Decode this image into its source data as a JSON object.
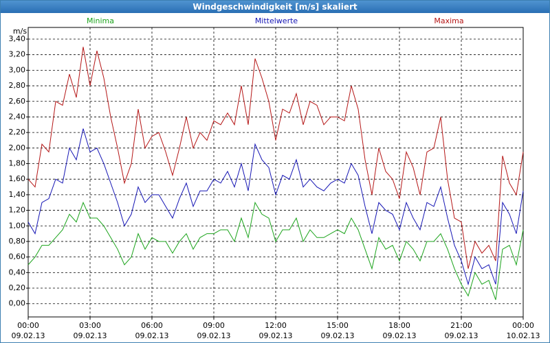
{
  "chart_data": {
    "type": "line",
    "title": "Windgeschwindigkeit [m/s] skaliert",
    "y_label": "m/s",
    "x": [
      0,
      20,
      40,
      60,
      80,
      100,
      120,
      140,
      160,
      180,
      200,
      220,
      240,
      260,
      280,
      300,
      320,
      340,
      360,
      380,
      400,
      420,
      440,
      460,
      480,
      500,
      520,
      540,
      560,
      580,
      600,
      620,
      640,
      660,
      680,
      700,
      720,
      740,
      760,
      780,
      800,
      820,
      840,
      860,
      880,
      900,
      920,
      940,
      960,
      980,
      1000,
      1020,
      1040,
      1060,
      1080,
      1100,
      1120,
      1140,
      1160,
      1180,
      1200,
      1220,
      1240,
      1260,
      1280,
      1300,
      1320,
      1340,
      1360,
      1380,
      1400,
      1420,
      1440
    ],
    "series": [
      {
        "name": "Minima",
        "color": "#1aa31a",
        "values": [
          0.5,
          0.6,
          0.75,
          0.75,
          0.85,
          0.95,
          1.15,
          1.05,
          1.3,
          1.1,
          1.1,
          1.0,
          0.85,
          0.7,
          0.5,
          0.6,
          0.9,
          0.7,
          0.85,
          0.8,
          0.8,
          0.65,
          0.8,
          0.9,
          0.7,
          0.85,
          0.9,
          0.9,
          0.95,
          0.95,
          0.8,
          1.1,
          0.85,
          1.3,
          1.15,
          1.1,
          0.8,
          0.95,
          0.95,
          1.1,
          0.8,
          0.95,
          0.85,
          0.85,
          0.9,
          0.95,
          0.9,
          1.1,
          0.95,
          0.7,
          0.45,
          0.85,
          0.7,
          0.75,
          0.55,
          0.8,
          0.7,
          0.55,
          0.8,
          0.8,
          0.9,
          0.7,
          0.45,
          0.25,
          0.1,
          0.4,
          0.25,
          0.3,
          0.05,
          0.7,
          0.75,
          0.5,
          0.95
        ]
      },
      {
        "name": "Mittelwerte",
        "color": "#1414b4",
        "values": [
          1.05,
          0.9,
          1.3,
          1.35,
          1.6,
          1.55,
          2.0,
          1.85,
          2.25,
          1.95,
          2.0,
          1.8,
          1.55,
          1.3,
          1.0,
          1.15,
          1.5,
          1.3,
          1.4,
          1.4,
          1.25,
          1.1,
          1.35,
          1.55,
          1.25,
          1.45,
          1.45,
          1.6,
          1.55,
          1.7,
          1.5,
          1.8,
          1.45,
          2.05,
          1.85,
          1.75,
          1.4,
          1.65,
          1.6,
          1.85,
          1.5,
          1.6,
          1.5,
          1.45,
          1.55,
          1.6,
          1.55,
          1.8,
          1.65,
          1.25,
          0.9,
          1.3,
          1.2,
          1.15,
          0.95,
          1.3,
          1.1,
          0.95,
          1.3,
          1.25,
          1.5,
          1.1,
          0.75,
          0.55,
          0.25,
          0.6,
          0.45,
          0.5,
          0.25,
          1.3,
          1.15,
          0.9,
          1.45
        ]
      },
      {
        "name": "Maxima",
        "color": "#b41414",
        "values": [
          1.6,
          1.5,
          2.05,
          1.95,
          2.6,
          2.55,
          2.95,
          2.65,
          3.3,
          2.8,
          3.25,
          2.9,
          2.4,
          2.0,
          1.55,
          1.8,
          2.5,
          2.0,
          2.15,
          2.2,
          1.95,
          1.65,
          2.0,
          2.4,
          2.0,
          2.2,
          2.1,
          2.35,
          2.3,
          2.45,
          2.3,
          2.8,
          2.3,
          3.15,
          2.9,
          2.6,
          2.1,
          2.5,
          2.45,
          2.7,
          2.3,
          2.6,
          2.55,
          2.3,
          2.4,
          2.4,
          2.35,
          2.8,
          2.5,
          1.85,
          1.4,
          2.0,
          1.7,
          1.6,
          1.35,
          1.95,
          1.75,
          1.4,
          1.95,
          2.0,
          2.4,
          1.6,
          1.1,
          1.05,
          0.45,
          0.8,
          0.65,
          0.75,
          0.55,
          1.9,
          1.55,
          1.4,
          1.95
        ]
      }
    ],
    "xlim": [
      0,
      1440
    ],
    "xticks": [
      {
        "value": 0,
        "label": "00:00",
        "sublabel": "09.02.13"
      },
      {
        "value": 180,
        "label": "03:00",
        "sublabel": "09.02.13"
      },
      {
        "value": 360,
        "label": "06:00",
        "sublabel": "09.02.13"
      },
      {
        "value": 540,
        "label": "09:00",
        "sublabel": "09.02.13"
      },
      {
        "value": 720,
        "label": "12:00",
        "sublabel": "09.02.13"
      },
      {
        "value": 900,
        "label": "15:00",
        "sublabel": "09.02.13"
      },
      {
        "value": 1080,
        "label": "18:00",
        "sublabel": "09.02.13"
      },
      {
        "value": 1260,
        "label": "21:00",
        "sublabel": "09.02.13"
      },
      {
        "value": 1440,
        "label": "00:00",
        "sublabel": "10.02.13"
      }
    ],
    "ylim": [
      -0.17,
      3.55
    ],
    "yticks": [
      {
        "value": 0,
        "label": "0,00"
      },
      {
        "value": 0.2,
        "label": "0,20"
      },
      {
        "value": 0.4,
        "label": "0,40"
      },
      {
        "value": 0.6,
        "label": "0,60"
      },
      {
        "value": 0.8,
        "label": "0,80"
      },
      {
        "value": 1.0,
        "label": "1,00"
      },
      {
        "value": 1.2,
        "label": "1,20"
      },
      {
        "value": 1.4,
        "label": "1,40"
      },
      {
        "value": 1.6,
        "label": "1,60"
      },
      {
        "value": 1.8,
        "label": "1,80"
      },
      {
        "value": 2.0,
        "label": "2,00"
      },
      {
        "value": 2.2,
        "label": "2,20"
      },
      {
        "value": 2.4,
        "label": "2,40"
      },
      {
        "value": 2.6,
        "label": "2,60"
      },
      {
        "value": 2.8,
        "label": "2,80"
      },
      {
        "value": 3.0,
        "label": "3,00"
      },
      {
        "value": 3.2,
        "label": "3,20"
      },
      {
        "value": 3.4,
        "label": "3,40"
      }
    ],
    "grid": true
  }
}
